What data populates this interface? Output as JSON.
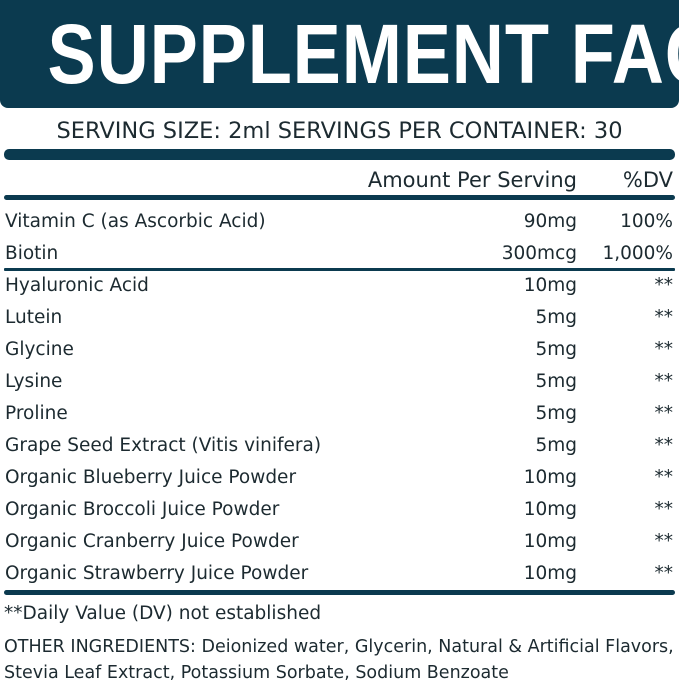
{
  "title": "SUPPLEMENT FACTS",
  "serving_line": "SERVING SIZE: 2ml SERVINGS PER CONTAINER: 30",
  "columns": {
    "amount": "Amount Per Serving",
    "dv": "%DV"
  },
  "vitamins": [
    {
      "name": "Vitamin C (as Ascorbic Acid)",
      "amount": "90mg",
      "dv": "100%"
    },
    {
      "name": "Biotin",
      "amount": "300mcg",
      "dv": "1,000%"
    }
  ],
  "ingredients": [
    {
      "name": "Hyaluronic Acid",
      "amount": "10mg",
      "dv": "**"
    },
    {
      "name": "Lutein",
      "amount": "5mg",
      "dv": "**"
    },
    {
      "name": "Glycine",
      "amount": "5mg",
      "dv": "**"
    },
    {
      "name": "Lysine",
      "amount": "5mg",
      "dv": "**"
    },
    {
      "name": "Proline",
      "amount": "5mg",
      "dv": "**"
    },
    {
      "name": "Grape Seed Extract (Vitis vinifera)",
      "amount": "5mg",
      "dv": "**"
    },
    {
      "name": "Organic Blueberry Juice Powder",
      "amount": "10mg",
      "dv": "**"
    },
    {
      "name": "Organic Broccoli Juice Powder",
      "amount": "10mg",
      "dv": "**"
    },
    {
      "name": "Organic Cranberry Juice Powder",
      "amount": "10mg",
      "dv": "**"
    },
    {
      "name": "Organic Strawberry Juice Powder",
      "amount": "10mg",
      "dv": "**"
    }
  ],
  "footnote": "**Daily Value (DV) not established",
  "other_ingredients": "OTHER INGREDIENTS: Deionized water, Glycerin, Natural & Artificial Flavors, Stevia Leaf Extract, Potassium Sorbate, Sodium Benzoate",
  "colors": {
    "brand": "#0b3a4f",
    "text": "#1c2a30"
  }
}
